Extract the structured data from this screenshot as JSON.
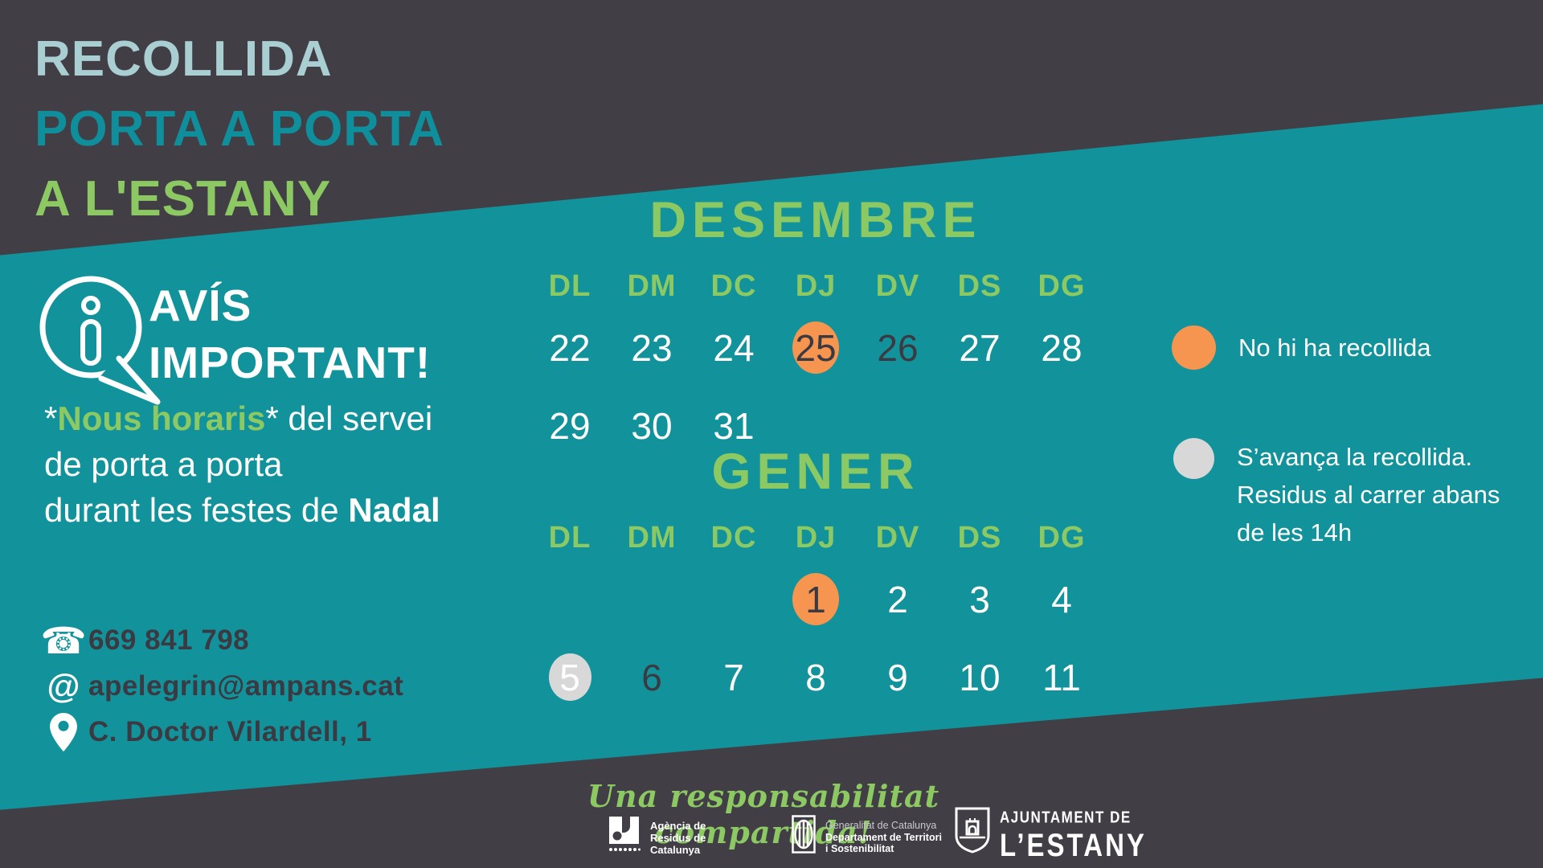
{
  "poster_title": {
    "line1": "RECOLLIDA",
    "line2": "PORTA A PORTA",
    "line3": "A L'ESTANY"
  },
  "notice": {
    "icon": "info-speech-bubble-icon",
    "heading_line1": "AVÍS",
    "heading_line2": "IMPORTANT!",
    "star_open": "*",
    "highlight": "Nous horaris",
    "after_highlight": "* del servei",
    "line2": "de porta a porta",
    "line3_pre": "durant les festes de ",
    "line3_bold": "Nadal"
  },
  "contacts": {
    "phone": "669 841 798",
    "email": "apelegrin@ampans.cat",
    "address": "C. Doctor Vilardell, 1"
  },
  "calendar": {
    "weekdays": [
      "DL",
      "DM",
      "DC",
      "DJ",
      "DV",
      "DS",
      "DG"
    ],
    "months": [
      {
        "name": "DESEMBRE",
        "weeks": [
          [
            {
              "d": "22"
            },
            {
              "d": "23"
            },
            {
              "d": "24"
            },
            {
              "d": "25",
              "mark": "orange"
            },
            {
              "d": "26",
              "style": "dark"
            },
            {
              "d": "27"
            },
            {
              "d": "28"
            }
          ],
          [
            {
              "d": "29"
            },
            {
              "d": "30"
            },
            {
              "d": "31"
            },
            null,
            null,
            null,
            null
          ]
        ]
      },
      {
        "name": "GENER",
        "weeks": [
          [
            null,
            null,
            null,
            {
              "d": "1",
              "mark": "orange"
            },
            {
              "d": "2"
            },
            {
              "d": "3"
            },
            {
              "d": "4"
            }
          ],
          [
            {
              "d": "5",
              "mark": "gray"
            },
            {
              "d": "6",
              "style": "dark"
            },
            {
              "d": "7"
            },
            {
              "d": "8"
            },
            {
              "d": "9"
            },
            {
              "d": "10"
            },
            {
              "d": "11"
            }
          ]
        ]
      }
    ]
  },
  "legend": {
    "items": [
      {
        "color": "#F6954F",
        "label": "No hi ha recollida"
      },
      {
        "color": "#D8D8D8",
        "lines": [
          "S’avança la recollida.",
          "Residus al carrer abans",
          "de les 14h"
        ]
      }
    ]
  },
  "footer": {
    "slogan": "Una responsabilitat compartida!",
    "logos": [
      {
        "name": "agencia-residus-logo",
        "lines": [
          "Agència de",
          "Residus de",
          "Catalunya"
        ]
      },
      {
        "name": "generalitat-logo",
        "lines": [
          "Generalitat de Catalunya",
          "Departament de Territori",
          "i Sostenibilitat"
        ]
      },
      {
        "name": "ajuntament-estany-logo",
        "lines": [
          "AJUNTAMENT DE",
          "L’ESTANY"
        ]
      }
    ]
  },
  "colors": {
    "background_dark": "#413E46",
    "band_teal": "#12939B",
    "accent_green": "#8DC963",
    "title_light_blue": "#A9CFD3",
    "title_teal": "#0F8E9B",
    "no_collection_orange": "#F6954F",
    "advanced_collection_gray": "#D8D8D8",
    "dark_text": "#3B3A42"
  }
}
